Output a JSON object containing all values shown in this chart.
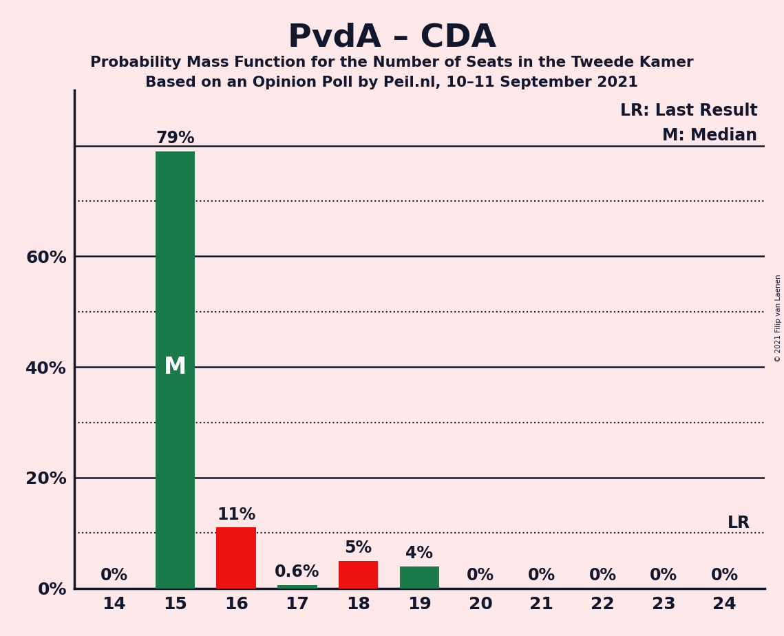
{
  "title": "PvdA – CDA",
  "subtitle1": "Probability Mass Function for the Number of Seats in the Tweede Kamer",
  "subtitle2": "Based on an Opinion Poll by Peil.nl, 10–11 September 2021",
  "copyright": "© 2021 Filip van Laenen",
  "seats": [
    14,
    15,
    16,
    17,
    18,
    19,
    20,
    21,
    22,
    23,
    24
  ],
  "values": [
    0.0,
    0.79,
    0.11,
    0.006,
    0.05,
    0.04,
    0.0,
    0.0,
    0.0,
    0.0,
    0.0
  ],
  "bar_colors": [
    "#1a7a4a",
    "#1a7a4a",
    "#ee1111",
    "#1a7a4a",
    "#ee1111",
    "#1a7a4a",
    "#1a7a4a",
    "#1a7a4a",
    "#1a7a4a",
    "#1a7a4a",
    "#1a7a4a"
  ],
  "labels": [
    "0%",
    "79%",
    "11%",
    "0.6%",
    "5%",
    "4%",
    "0%",
    "0%",
    "0%",
    "0%",
    "0%"
  ],
  "median_seat": 15,
  "lr_value": 0.1,
  "legend_lr": "LR: Last Result",
  "legend_m": "M: Median",
  "background_color": "#fce8e8",
  "text_color": "#12172e",
  "ylim": [
    0,
    0.9
  ],
  "yticks": [
    0.0,
    0.2,
    0.4,
    0.6
  ],
  "ytick_labels": [
    "0%",
    "20%",
    "40%",
    "60%"
  ],
  "solid_lines": [
    0.2,
    0.4,
    0.6,
    0.8
  ],
  "dotted_lines": [
    0.1,
    0.3,
    0.5,
    0.7
  ]
}
